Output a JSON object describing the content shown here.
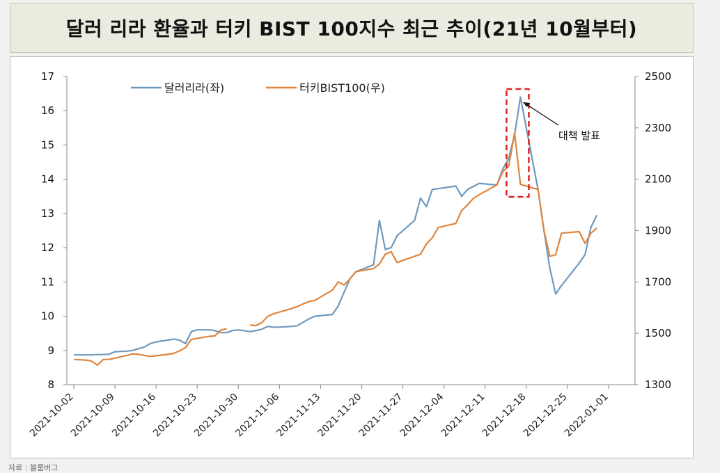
{
  "title": "달러 리라 환율과 터키 BIST 100지수 최근 추이(21년 10월부터)",
  "source_note": "자료 : 블룸버그",
  "colors": {
    "usd_try": "#6f98bd",
    "bist": "#e0843c",
    "highlight": "#e02020"
  },
  "chart_data": {
    "type": "line",
    "title": "달러 리라 환율과 터키 BIST 100지수 최근 추이(21년 10월부터)",
    "x_tick_labels": [
      "2021-10-02",
      "2021-10-09",
      "2021-10-16",
      "2021-10-23",
      "2021-10-30",
      "2021-11-06",
      "2021-11-13",
      "2021-11-20",
      "2021-11-27",
      "2021-12-04",
      "2021-12-11",
      "2021-12-18",
      "2021-12-25",
      "2022-01-01"
    ],
    "x_range": [
      "2021-10-02",
      "2022-01-01"
    ],
    "y_left": {
      "min": 8,
      "max": 17,
      "ticks": [
        8,
        9,
        10,
        11,
        12,
        13,
        14,
        15,
        16,
        17
      ]
    },
    "y_right": {
      "min": 1300,
      "max": 2500,
      "ticks": [
        1300,
        1500,
        1700,
        1900,
        2100,
        2300,
        2500
      ]
    },
    "legend_position": "top",
    "grid": false,
    "series": [
      {
        "name": "달러리라(좌)",
        "axis": "left",
        "points": [
          [
            "2021-10-02",
            8.87
          ],
          [
            "2021-10-04",
            8.87
          ],
          [
            "2021-10-05",
            8.87
          ],
          [
            "2021-10-06",
            8.88
          ],
          [
            "2021-10-07",
            8.88
          ],
          [
            "2021-10-08",
            8.89
          ],
          [
            "2021-10-09",
            8.96
          ],
          [
            "2021-10-11",
            8.98
          ],
          [
            "2021-10-12",
            9.0
          ],
          [
            "2021-10-13",
            9.05
          ],
          [
            "2021-10-14",
            9.1
          ],
          [
            "2021-10-15",
            9.2
          ],
          [
            "2021-10-16",
            9.25
          ],
          [
            "2021-10-18",
            9.3
          ],
          [
            "2021-10-19",
            9.33
          ],
          [
            "2021-10-20",
            9.3
          ],
          [
            "2021-10-21",
            9.2
          ],
          [
            "2021-10-22",
            9.55
          ],
          [
            "2021-10-23",
            9.6
          ],
          [
            "2021-10-25",
            9.6
          ],
          [
            "2021-10-26",
            9.58
          ],
          [
            "2021-10-27",
            9.52
          ],
          [
            "2021-10-28",
            9.52
          ],
          [
            "2021-10-29",
            9.58
          ],
          [
            "2021-10-30",
            9.6
          ],
          [
            "2021-11-01",
            9.55
          ],
          [
            "2021-11-02",
            9.58
          ],
          [
            "2021-11-03",
            9.62
          ],
          [
            "2021-11-04",
            9.7
          ],
          [
            "2021-11-05",
            9.68
          ],
          [
            "2021-11-06",
            9.68
          ],
          [
            "2021-11-08",
            9.7
          ],
          [
            "2021-11-09",
            9.72
          ],
          [
            "2021-11-10",
            9.82
          ],
          [
            "2021-11-11",
            9.92
          ],
          [
            "2021-11-12",
            10.0
          ],
          [
            "2021-11-15",
            10.05
          ],
          [
            "2021-11-16",
            10.3
          ],
          [
            "2021-11-17",
            10.7
          ],
          [
            "2021-11-18",
            11.1
          ],
          [
            "2021-11-19",
            11.3
          ],
          [
            "2021-11-22",
            11.5
          ],
          [
            "2021-11-23",
            12.8
          ],
          [
            "2021-11-24",
            11.95
          ],
          [
            "2021-11-25",
            12.0
          ],
          [
            "2021-11-26",
            12.35
          ],
          [
            "2021-11-29",
            12.8
          ],
          [
            "2021-11-30",
            13.45
          ],
          [
            "2021-12-01",
            13.2
          ],
          [
            "2021-12-02",
            13.7
          ],
          [
            "2021-12-06",
            13.8
          ],
          [
            "2021-12-07",
            13.5
          ],
          [
            "2021-12-08",
            13.7
          ],
          [
            "2021-12-10",
            13.88
          ],
          [
            "2021-12-13",
            13.83
          ],
          [
            "2021-12-14",
            14.3
          ],
          [
            "2021-12-15",
            14.6
          ],
          [
            "2021-12-16",
            15.3
          ],
          [
            "2021-12-17",
            16.4
          ],
          [
            "2021-12-20",
            13.7
          ],
          [
            "2021-12-21",
            12.5
          ],
          [
            "2021-12-22",
            11.4
          ],
          [
            "2021-12-23",
            10.65
          ],
          [
            "2021-12-24",
            10.9
          ],
          [
            "2021-12-27",
            11.55
          ],
          [
            "2021-12-28",
            11.8
          ],
          [
            "2021-12-29",
            12.6
          ],
          [
            "2021-12-30",
            12.95
          ]
        ]
      },
      {
        "name": "터키BIST100(우)",
        "axis": "right",
        "segments": [
          [
            [
              "2021-10-02",
              1398
            ],
            [
              "2021-10-04",
              1396
            ],
            [
              "2021-10-05",
              1392
            ],
            [
              "2021-10-06",
              1376
            ],
            [
              "2021-10-07",
              1398
            ],
            [
              "2021-10-08",
              1398
            ],
            [
              "2021-10-11",
              1414
            ],
            [
              "2021-10-12",
              1420
            ],
            [
              "2021-10-13",
              1418
            ],
            [
              "2021-10-14",
              1414
            ],
            [
              "2021-10-15",
              1410
            ],
            [
              "2021-10-18",
              1418
            ],
            [
              "2021-10-19",
              1422
            ],
            [
              "2021-10-20",
              1432
            ],
            [
              "2021-10-21",
              1444
            ],
            [
              "2021-10-22",
              1476
            ],
            [
              "2021-10-25",
              1488
            ],
            [
              "2021-10-26",
              1490
            ],
            [
              "2021-10-27",
              1512
            ],
            [
              "2021-10-28",
              1518
            ]
          ],
          [
            [
              "2021-11-01",
              1532
            ],
            [
              "2021-11-02",
              1530
            ],
            [
              "2021-11-03",
              1542
            ],
            [
              "2021-11-04",
              1566
            ],
            [
              "2021-11-05",
              1576
            ],
            [
              "2021-11-08",
              1596
            ],
            [
              "2021-11-09",
              1604
            ],
            [
              "2021-11-10",
              1614
            ],
            [
              "2021-11-11",
              1624
            ],
            [
              "2021-11-12",
              1628
            ],
            [
              "2021-11-15",
              1668
            ],
            [
              "2021-11-16",
              1700
            ],
            [
              "2021-11-17",
              1688
            ],
            [
              "2021-11-18",
              1712
            ],
            [
              "2021-11-19",
              1740
            ],
            [
              "2021-11-22",
              1752
            ],
            [
              "2021-11-23",
              1770
            ],
            [
              "2021-11-24",
              1808
            ],
            [
              "2021-11-25",
              1818
            ],
            [
              "2021-11-26",
              1776
            ],
            [
              "2021-11-29",
              1800
            ],
            [
              "2021-11-30",
              1808
            ],
            [
              "2021-12-01",
              1848
            ],
            [
              "2021-12-02",
              1872
            ],
            [
              "2021-12-03",
              1912
            ],
            [
              "2021-12-06",
              1928
            ],
            [
              "2021-12-07",
              1978
            ],
            [
              "2021-12-08",
              2000
            ],
            [
              "2021-12-09",
              2026
            ],
            [
              "2021-12-10",
              2040
            ],
            [
              "2021-12-13",
              2078
            ],
            [
              "2021-12-14",
              2130
            ],
            [
              "2021-12-15",
              2150
            ],
            [
              "2021-12-16",
              2280
            ],
            [
              "2021-12-17",
              2080
            ],
            [
              "2021-12-20",
              2060
            ],
            [
              "2021-12-21",
              1900
            ],
            [
              "2021-12-22",
              1800
            ],
            [
              "2021-12-23",
              1806
            ],
            [
              "2021-12-24",
              1890
            ],
            [
              "2021-12-27",
              1896
            ],
            [
              "2021-12-28",
              1850
            ],
            [
              "2021-12-29",
              1890
            ],
            [
              "2021-12-30",
              1910
            ]
          ]
        ]
      }
    ],
    "annotation": {
      "text": "대책 발표",
      "target_date": "2021-12-17"
    }
  }
}
